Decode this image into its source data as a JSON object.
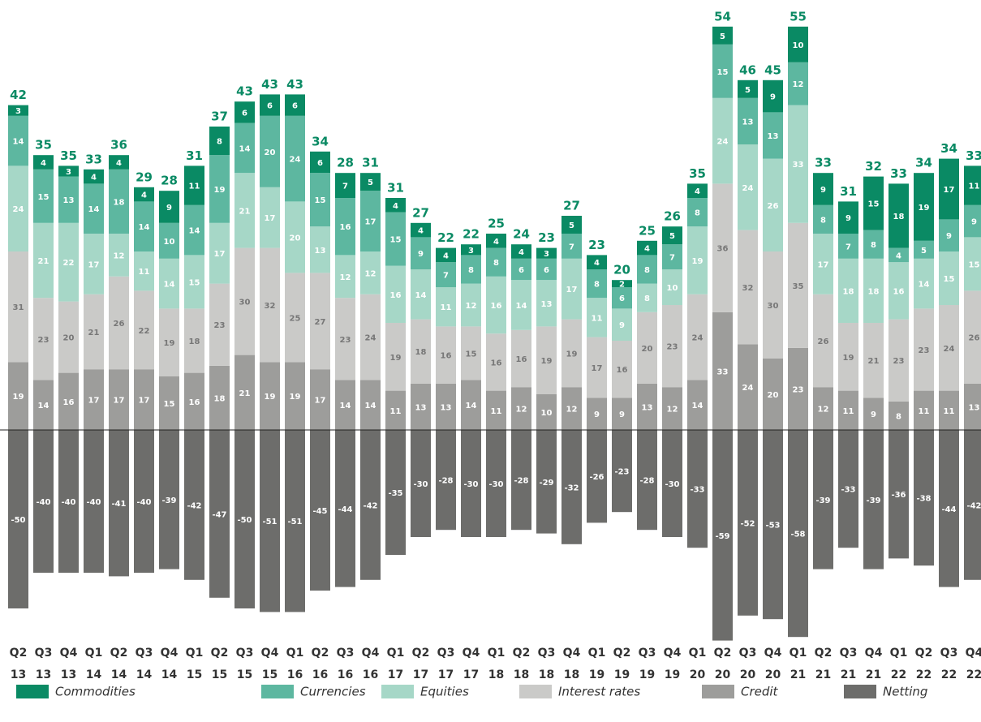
{
  "chart_data": {
    "type": "stacked_bar",
    "categories": [
      [
        "Q2",
        "13"
      ],
      [
        "Q3",
        "13"
      ],
      [
        "Q4",
        "13"
      ],
      [
        "Q1",
        "14"
      ],
      [
        "Q2",
        "14"
      ],
      [
        "Q3",
        "14"
      ],
      [
        "Q4",
        "14"
      ],
      [
        "Q1",
        "15"
      ],
      [
        "Q2",
        "15"
      ],
      [
        "Q3",
        "15"
      ],
      [
        "Q4",
        "15"
      ],
      [
        "Q1",
        "16"
      ],
      [
        "Q2",
        "16"
      ],
      [
        "Q3",
        "16"
      ],
      [
        "Q4",
        "16"
      ],
      [
        "Q1",
        "17"
      ],
      [
        "Q2",
        "17"
      ],
      [
        "Q3",
        "17"
      ],
      [
        "Q4",
        "17"
      ],
      [
        "Q1",
        "18"
      ],
      [
        "Q2",
        "18"
      ],
      [
        "Q3",
        "18"
      ],
      [
        "Q4",
        "18"
      ],
      [
        "Q1",
        "19"
      ],
      [
        "Q2",
        "19"
      ],
      [
        "Q3",
        "19"
      ],
      [
        "Q4",
        "19"
      ],
      [
        "Q1",
        "20"
      ],
      [
        "Q2",
        "20"
      ],
      [
        "Q3",
        "20"
      ],
      [
        "Q4",
        "20"
      ],
      [
        "Q1",
        "21"
      ],
      [
        "Q2",
        "21"
      ],
      [
        "Q3",
        "21"
      ],
      [
        "Q4",
        "21"
      ],
      [
        "Q1",
        "22"
      ],
      [
        "Q2",
        "22"
      ],
      [
        "Q3",
        "22"
      ],
      [
        "Q4",
        "22"
      ]
    ],
    "series": [
      {
        "name": "Credit",
        "color": "#9d9d9b",
        "label_color": "#ffffff",
        "values": [
          19,
          14,
          16,
          17,
          17,
          17,
          15,
          16,
          18,
          21,
          19,
          19,
          17,
          14,
          14,
          11,
          13,
          13,
          14,
          11,
          12,
          10,
          12,
          9,
          9,
          13,
          12,
          14,
          33,
          24,
          20,
          23,
          12,
          11,
          9,
          8,
          11,
          11,
          13
        ]
      },
      {
        "name": "Interest rates",
        "color": "#cacac8",
        "label_color": "#777777",
        "values": [
          31,
          23,
          20,
          21,
          26,
          22,
          19,
          18,
          23,
          30,
          32,
          25,
          27,
          23,
          24,
          19,
          18,
          16,
          15,
          16,
          16,
          19,
          19,
          17,
          16,
          20,
          23,
          24,
          36,
          32,
          30,
          35,
          26,
          19,
          21,
          23,
          23,
          24,
          26
        ]
      },
      {
        "name": "Equities",
        "color": "#a6d7c7",
        "label_color": "#ffffff",
        "values": [
          24,
          21,
          22,
          17,
          12,
          11,
          14,
          15,
          17,
          21,
          17,
          20,
          13,
          12,
          12,
          16,
          14,
          11,
          12,
          16,
          14,
          13,
          17,
          11,
          9,
          8,
          10,
          19,
          24,
          24,
          26,
          33,
          17,
          18,
          18,
          16,
          14,
          15,
          15
        ]
      },
      {
        "name": "Currencies",
        "color": "#5db7a0",
        "label_color": "#ffffff",
        "values": [
          14,
          15,
          13,
          14,
          18,
          14,
          10,
          14,
          19,
          14,
          20,
          24,
          15,
          16,
          17,
          15,
          9,
          7,
          8,
          8,
          6,
          6,
          7,
          8,
          6,
          8,
          7,
          8,
          15,
          13,
          13,
          12,
          8,
          7,
          8,
          4,
          5,
          9,
          9
        ]
      },
      {
        "name": "Commodities",
        "color": "#0a8a64",
        "label_color": "#ffffff",
        "values": [
          3,
          4,
          3,
          4,
          4,
          4,
          9,
          11,
          8,
          6,
          6,
          6,
          6,
          7,
          5,
          4,
          4,
          4,
          3,
          4,
          4,
          3,
          5,
          4,
          2,
          4,
          5,
          4,
          5,
          5,
          9,
          10,
          9,
          9,
          15,
          18,
          19,
          17,
          11
        ]
      },
      {
        "name": "Netting",
        "color": "#6d6d6b",
        "label_color": "#ffffff",
        "values": [
          -50,
          -40,
          -40,
          -40,
          -41,
          -40,
          -39,
          -42,
          -47,
          -50,
          -51,
          -51,
          -45,
          -44,
          -42,
          -35,
          -30,
          -28,
          -30,
          -30,
          -28,
          -29,
          -32,
          -26,
          -23,
          -28,
          -30,
          -33,
          -59,
          -52,
          -53,
          -58,
          -39,
          -33,
          -39,
          -36,
          -38,
          -44,
          -42
        ]
      }
    ],
    "totals": [
      42,
      35,
      35,
      33,
      36,
      29,
      28,
      31,
      37,
      43,
      43,
      43,
      34,
      28,
      31,
      31,
      27,
      22,
      22,
      25,
      24,
      23,
      27,
      23,
      20,
      25,
      26,
      35,
      54,
      46,
      45,
      55,
      33,
      31,
      32,
      33,
      34,
      34,
      33
    ],
    "legend_order": [
      4,
      3,
      2,
      1,
      0,
      5
    ],
    "ylim": [
      -70,
      120
    ]
  }
}
